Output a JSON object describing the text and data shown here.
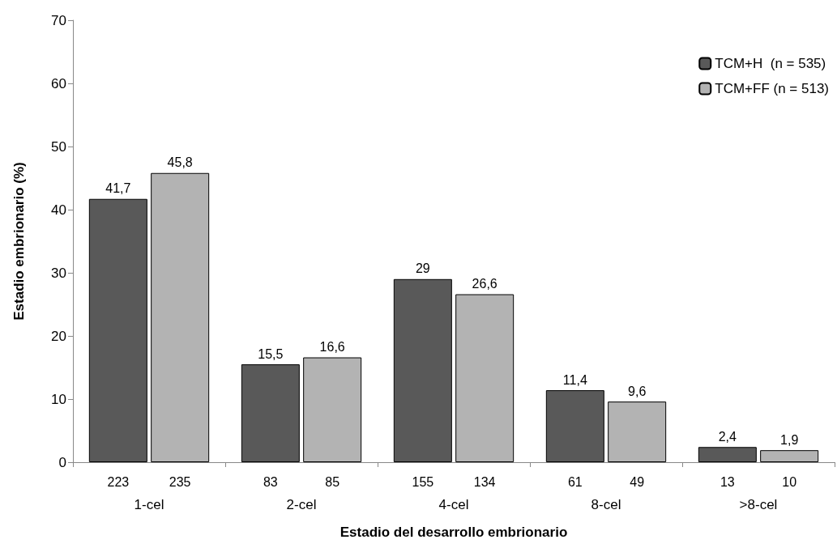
{
  "chart_data": {
    "type": "bar",
    "xlabel": "Estadio del desarrollo embrionario",
    "ylabel": "Estadio embrionario (%)",
    "categories": [
      "1-cel",
      "2-cel",
      "4-cel",
      "8-cel",
      ">8-cel"
    ],
    "series": [
      {
        "name": "TCM+H  (n = 535)",
        "color": "#595959",
        "values": [
          41.7,
          15.5,
          29,
          11.4,
          2.4
        ],
        "value_labels": [
          "41,7",
          "15,5",
          "29",
          "11,4",
          "2,4"
        ]
      },
      {
        "name": "TCM+FF (n = 513)",
        "color": "#b3b3b3",
        "values": [
          45.8,
          16.6,
          26.6,
          9.6,
          1.9
        ],
        "value_labels": [
          "45,8",
          "16,6",
          "26,6",
          "9,6",
          "1,9"
        ]
      }
    ],
    "annotations": [
      "223",
      "235",
      "83",
      "85",
      "155",
      "134",
      "61",
      "49",
      "13",
      "10"
    ],
    "ylim": [
      0,
      70
    ],
    "yticks": [
      0,
      10,
      20,
      30,
      40,
      50,
      60,
      70
    ],
    "grid": false,
    "legend": "top right"
  }
}
